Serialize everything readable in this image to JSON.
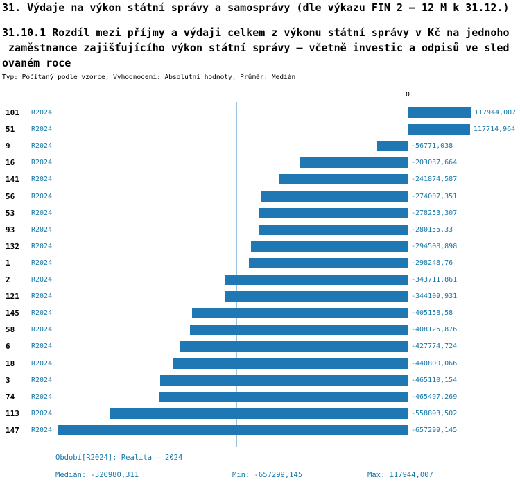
{
  "title": "31. Výdaje na výkon státní správy a samosprávy (dle výkazu FIN 2 – 12 M k 31.12.)",
  "subtitle": "31.10.1 Rozdíl mezi příjmy a výdaji celkem z výkonu státní správy v Kč na jednoho\n zaměstnance zajišťujícího výkon státní správy – včetně investic a odpisů ve sled\novaném roce",
  "meta_line": "Typ: Počítaný podle vzorce, Vyhodnocení: Absolutní hodnoty, Průměr: Medián",
  "colors": {
    "bar": "#1f77b4",
    "accent_text": "#1878a8",
    "median_line": "#9bc3de",
    "axis": "#000000"
  },
  "chart_data": {
    "type": "bar",
    "orientation": "horizontal",
    "zero_label": "0",
    "xlim": [
      -657299.145,
      117944.007
    ],
    "median_value": -320980.311,
    "grid": false,
    "rows": [
      {
        "id": "101",
        "period": "R2024",
        "value": 117944.007,
        "value_label": "117944,007"
      },
      {
        "id": "51",
        "period": "R2024",
        "value": 117714.964,
        "value_label": "117714,964"
      },
      {
        "id": "9",
        "period": "R2024",
        "value": -56771.038,
        "value_label": "-56771,038"
      },
      {
        "id": "16",
        "period": "R2024",
        "value": -203037.664,
        "value_label": "-203037,664"
      },
      {
        "id": "141",
        "period": "R2024",
        "value": -241874.587,
        "value_label": "-241874,587"
      },
      {
        "id": "56",
        "period": "R2024",
        "value": -274007.351,
        "value_label": "-274007,351"
      },
      {
        "id": "53",
        "period": "R2024",
        "value": -278253.307,
        "value_label": "-278253,307"
      },
      {
        "id": "93",
        "period": "R2024",
        "value": -280155.33,
        "value_label": "-280155,33"
      },
      {
        "id": "132",
        "period": "R2024",
        "value": -294508.898,
        "value_label": "-294508,898"
      },
      {
        "id": "1",
        "period": "R2024",
        "value": -298248.76,
        "value_label": "-298248,76"
      },
      {
        "id": "2",
        "period": "R2024",
        "value": -343711.861,
        "value_label": "-343711,861"
      },
      {
        "id": "121",
        "period": "R2024",
        "value": -344109.931,
        "value_label": "-344109,931"
      },
      {
        "id": "145",
        "period": "R2024",
        "value": -405158.58,
        "value_label": "-405158,58"
      },
      {
        "id": "58",
        "period": "R2024",
        "value": -408125.876,
        "value_label": "-408125,876"
      },
      {
        "id": "6",
        "period": "R2024",
        "value": -427774.724,
        "value_label": "-427774,724"
      },
      {
        "id": "18",
        "period": "R2024",
        "value": -440800.066,
        "value_label": "-440800,066"
      },
      {
        "id": "3",
        "period": "R2024",
        "value": -465110.154,
        "value_label": "-465110,154"
      },
      {
        "id": "74",
        "period": "R2024",
        "value": -465497.269,
        "value_label": "-465497,269"
      },
      {
        "id": "113",
        "period": "R2024",
        "value": -558893.502,
        "value_label": "-558893,502"
      },
      {
        "id": "147",
        "period": "R2024",
        "value": -657299.145,
        "value_label": "-657299,145"
      }
    ]
  },
  "footer": {
    "period_label": "Období[R2024]: Realita – 2024",
    "median_label": "Medián: -320980,311",
    "min_label": "Min: -657299,145",
    "max_label": "Max: 117944,007"
  }
}
